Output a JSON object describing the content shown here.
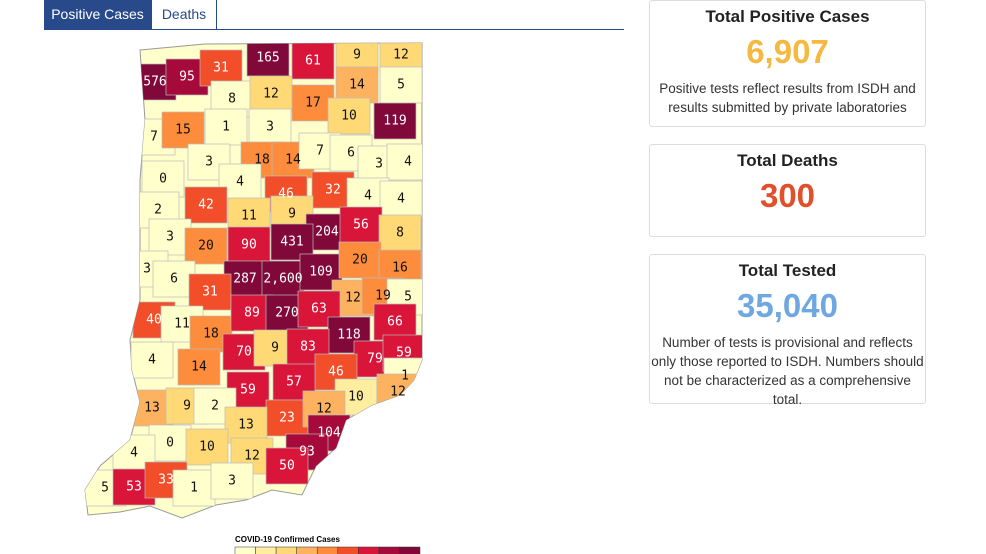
{
  "tabs": [
    "Positive Cases",
    "Deaths"
  ],
  "cards": [
    {
      "title": "Total Positive Cases",
      "value": "6,907",
      "color": "#f5b942",
      "note": [
        "Positive tests reflect results from ISDH and",
        "results submitted by private laboratories"
      ]
    },
    {
      "title": "Total Deaths",
      "value": "300",
      "color": "#e0502a",
      "note": []
    },
    {
      "title": "Total Tested",
      "value": "35,040",
      "color": "#6fa8e0",
      "note": [
        "Number of tests is provisional and reflects",
        "only those reported to ISDH. Numbers should",
        "not be characterized as a comprehensive total."
      ]
    }
  ],
  "legend": {
    "title": "COVID-19 Confirmed Cases",
    "colors": [
      "#ffffcc",
      "#ffeda0",
      "#fed976",
      "#fdb25f",
      "#fd8d3c",
      "#f24e2a",
      "#d9163a",
      "#a50a3a",
      "#80093a"
    ]
  },
  "counties": [
    {
      "label": "576",
      "color": "#80093a"
    },
    {
      "label": "95",
      "color": "#a50a3a"
    },
    {
      "label": "31",
      "color": "#f24e2a"
    },
    {
      "label": "165",
      "color": "#80093a"
    },
    {
      "label": "61",
      "color": "#d9163a"
    },
    {
      "label": "9",
      "color": "#fed976"
    },
    {
      "label": "12",
      "color": "#fed976"
    },
    {
      "label": "8",
      "color": "#ffffcc"
    },
    {
      "label": "12",
      "color": "#fed976"
    },
    {
      "label": "17",
      "color": "#fd8d3c"
    },
    {
      "label": "14",
      "color": "#fdb25f"
    },
    {
      "label": "5",
      "color": "#ffffcc"
    },
    {
      "label": "7",
      "color": "#ffffcc"
    },
    {
      "label": "15",
      "color": "#fd8d3c"
    },
    {
      "label": "1",
      "color": "#ffffcc"
    },
    {
      "label": "3",
      "color": "#ffffcc"
    },
    {
      "label": "10",
      "color": "#fed976"
    },
    {
      "label": "119",
      "color": "#80093a"
    },
    {
      "label": "3",
      "color": "#ffffcc"
    },
    {
      "label": "18",
      "color": "#fd8d3c"
    },
    {
      "label": "14",
      "color": "#fd8d3c"
    },
    {
      "label": "7",
      "color": "#ffffcc"
    },
    {
      "label": "6",
      "color": "#ffffcc"
    },
    {
      "label": "3",
      "color": "#ffffcc"
    },
    {
      "label": "4",
      "color": "#ffffcc"
    },
    {
      "label": "0",
      "color": "#ffffcc"
    },
    {
      "label": "4",
      "color": "#ffffcc"
    },
    {
      "label": "46",
      "color": "#f24e2a"
    },
    {
      "label": "32",
      "color": "#f24e2a"
    },
    {
      "label": "4",
      "color": "#ffffcc"
    },
    {
      "label": "4",
      "color": "#ffffcc"
    },
    {
      "label": "2",
      "color": "#ffffcc"
    },
    {
      "label": "42",
      "color": "#f24e2a"
    },
    {
      "label": "11",
      "color": "#fed976"
    },
    {
      "label": "9",
      "color": "#fed976"
    },
    {
      "label": "204",
      "color": "#80093a"
    },
    {
      "label": "56",
      "color": "#d9163a"
    },
    {
      "label": "8",
      "color": "#fed976"
    },
    {
      "label": "3",
      "color": "#ffffcc"
    },
    {
      "label": "20",
      "color": "#fd8d3c"
    },
    {
      "label": "90",
      "color": "#d9163a"
    },
    {
      "label": "431",
      "color": "#80093a"
    },
    {
      "label": "3",
      "color": "#ffffcc"
    },
    {
      "label": "6",
      "color": "#ffffcc"
    },
    {
      "label": "287",
      "color": "#80093a"
    },
    {
      "label": "2,600",
      "color": "#80093a"
    },
    {
      "label": "109",
      "color": "#80093a"
    },
    {
      "label": "20",
      "color": "#fd8d3c"
    },
    {
      "label": "16",
      "color": "#fd8d3c"
    },
    {
      "label": "31",
      "color": "#f24e2a"
    },
    {
      "label": "12",
      "color": "#fdb25f"
    },
    {
      "label": "19",
      "color": "#fd8d3c"
    },
    {
      "label": "5",
      "color": "#ffffcc"
    },
    {
      "label": "40",
      "color": "#f24e2a"
    },
    {
      "label": "11",
      "color": "#ffffcc"
    },
    {
      "label": "18",
      "color": "#fd8d3c"
    },
    {
      "label": "89",
      "color": "#d9163a"
    },
    {
      "label": "270",
      "color": "#80093a"
    },
    {
      "label": "63",
      "color": "#d9163a"
    },
    {
      "label": "66",
      "color": "#d9163a"
    },
    {
      "label": "118",
      "color": "#80093a"
    },
    {
      "label": "4",
      "color": "#ffffcc"
    },
    {
      "label": "70",
      "color": "#d9163a"
    },
    {
      "label": "9",
      "color": "#fed976"
    },
    {
      "label": "83",
      "color": "#d9163a"
    },
    {
      "label": "79",
      "color": "#d9163a"
    },
    {
      "label": "59",
      "color": "#d9163a"
    },
    {
      "label": "14",
      "color": "#fd8d3c"
    },
    {
      "label": "46",
      "color": "#f24e2a"
    },
    {
      "label": "1",
      "color": "#ffffcc"
    },
    {
      "label": "59",
      "color": "#d9163a"
    },
    {
      "label": "57",
      "color": "#d9163a"
    },
    {
      "label": "13",
      "color": "#fdb25f"
    },
    {
      "label": "9",
      "color": "#fed976"
    },
    {
      "label": "2",
      "color": "#ffffcc"
    },
    {
      "label": "10",
      "color": "#ffeda0"
    },
    {
      "label": "12",
      "color": "#fdb25f"
    },
    {
      "label": "23",
      "color": "#f24e2a"
    },
    {
      "label": "12",
      "color": "#fdb25f"
    },
    {
      "label": "13",
      "color": "#fed976"
    },
    {
      "label": "104",
      "color": "#a50a3a"
    },
    {
      "label": "0",
      "color": "#ffffcc"
    },
    {
      "label": "4",
      "color": "#ffffcc"
    },
    {
      "label": "10",
      "color": "#fed976"
    },
    {
      "label": "12",
      "color": "#fed976"
    },
    {
      "label": "93",
      "color": "#a50a3a"
    },
    {
      "label": "50",
      "color": "#d9163a"
    },
    {
      "label": "5",
      "color": "#ffffcc"
    },
    {
      "label": "53",
      "color": "#d9163a"
    },
    {
      "label": "33",
      "color": "#f24e2a"
    },
    {
      "label": "1",
      "color": "#ffffcc"
    },
    {
      "label": "3",
      "color": "#ffffcc"
    }
  ]
}
